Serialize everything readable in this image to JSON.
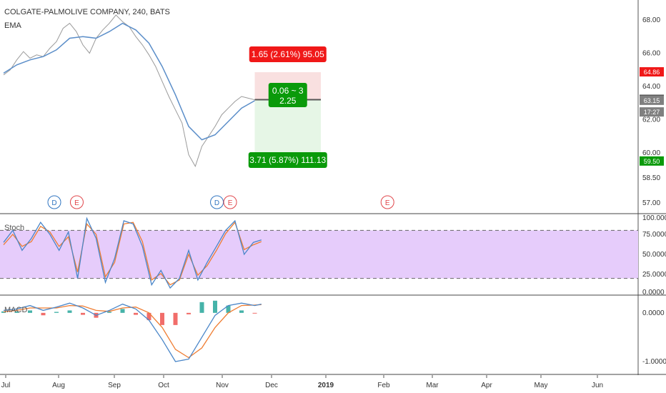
{
  "chart_data": {
    "type": "line",
    "title": "COLGATE-PALMOLIVE COMPANY, 240, BATS",
    "overlay_label": "EMA",
    "colors": {
      "price": "#9a9a9a",
      "ema": "#5b8ec9",
      "stoch_k": "#4a86c8",
      "stoch_d": "#ef7d32",
      "stoch_band": "#e6ccfb",
      "macd": "#4a86c8",
      "signal": "#ef7d32",
      "hist_up": "#26a69a",
      "hist_down": "#ef5350",
      "loss_zone": "#f9e0e0",
      "profit_zone": "#e6f6e6",
      "red_tag": "#f01818",
      "green_tag": "#0a9a0a",
      "gray_tag": "#808080",
      "dark_tag": "#555555",
      "dividend": "#2f74c0",
      "earnings": "#e0454a"
    },
    "x_axis_labels": [
      "Jul",
      "Aug",
      "Sep",
      "Oct",
      "Nov",
      "Dec",
      "2019",
      "Feb",
      "Mar",
      "Apr",
      "May",
      "Jun"
    ],
    "price_pane": {
      "ylim": [
        56.4,
        69.2
      ],
      "y_ticks": [
        "68.00",
        "66.00",
        "64.00",
        "62.00",
        "60.00",
        "58.50",
        "57.00"
      ],
      "y_tick_values": [
        68.0,
        66.0,
        64.0,
        62.0,
        60.0,
        58.5,
        57.0
      ],
      "price_tags": [
        {
          "label": "64.86",
          "value": 64.86,
          "style": "red"
        },
        {
          "label": "63.21",
          "value": 63.21,
          "style": "dark"
        },
        {
          "label": "63.15",
          "value": 63.15,
          "style": "gray"
        },
        {
          "label": "17:27",
          "value": 62.45,
          "style": "gray"
        },
        {
          "label": "59.50",
          "value": 59.5,
          "style": "green"
        }
      ],
      "price_series": [
        [
          0,
          64.7
        ],
        [
          0.5,
          65.0
        ],
        [
          1,
          65.6
        ],
        [
          1.5,
          66.1
        ],
        [
          2,
          65.7
        ],
        [
          2.5,
          65.9
        ],
        [
          3,
          65.8
        ],
        [
          3.5,
          66.3
        ],
        [
          4,
          66.7
        ],
        [
          4.5,
          67.5
        ],
        [
          5,
          67.8
        ],
        [
          5.5,
          67.3
        ],
        [
          6,
          66.5
        ],
        [
          6.5,
          66.0
        ],
        [
          7,
          66.9
        ],
        [
          7.5,
          67.4
        ],
        [
          8,
          67.8
        ],
        [
          8.5,
          68.3
        ],
        [
          9,
          67.9
        ],
        [
          9.5,
          67.6
        ],
        [
          10,
          67.0
        ],
        [
          10.5,
          66.5
        ],
        [
          11,
          65.9
        ],
        [
          11.5,
          65.2
        ],
        [
          12,
          64.3
        ],
        [
          12.5,
          63.4
        ],
        [
          13,
          62.6
        ],
        [
          13.5,
          61.8
        ],
        [
          14,
          59.9
        ],
        [
          14.5,
          59.2
        ],
        [
          15,
          60.4
        ],
        [
          15.5,
          61.0
        ],
        [
          16,
          61.6
        ],
        [
          16.5,
          62.3
        ],
        [
          17,
          62.7
        ],
        [
          17.5,
          63.1
        ],
        [
          18,
          63.4
        ],
        [
          18.5,
          63.3
        ],
        [
          19,
          63.2
        ]
      ],
      "ema_series": [
        [
          0,
          64.8
        ],
        [
          1,
          65.3
        ],
        [
          2,
          65.6
        ],
        [
          3,
          65.8
        ],
        [
          4,
          66.2
        ],
        [
          5,
          66.9
        ],
        [
          6,
          67.0
        ],
        [
          7,
          66.9
        ],
        [
          8,
          67.3
        ],
        [
          9,
          67.8
        ],
        [
          10,
          67.4
        ],
        [
          11,
          66.6
        ],
        [
          12,
          65.2
        ],
        [
          13,
          63.5
        ],
        [
          14,
          61.6
        ],
        [
          15,
          60.8
        ],
        [
          16,
          61.1
        ],
        [
          17,
          61.9
        ],
        [
          18,
          62.7
        ],
        [
          19,
          63.15
        ]
      ],
      "position": {
        "entry": 63.21,
        "stop": 64.86,
        "target": 59.5,
        "x_start": 19,
        "x_end": 24,
        "loss_label": "1.65 (2.61%) 95.05",
        "mid_label_1": "0.06 ~ 3",
        "mid_label_2": "2.25",
        "profit_label": "3.71 (5.87%) 111.13"
      },
      "events": [
        {
          "letter": "D",
          "x": 2,
          "type": "dividend"
        },
        {
          "letter": "E",
          "x": 3.7,
          "type": "earnings"
        },
        {
          "letter": "D",
          "x": 14.3,
          "type": "dividend"
        },
        {
          "letter": "E",
          "x": 15.3,
          "type": "earnings"
        },
        {
          "letter": "E",
          "x": 27.2,
          "type": "earnings"
        }
      ]
    },
    "stoch_pane": {
      "label": "Stoch",
      "ylim": [
        0,
        100
      ],
      "band": [
        20,
        80
      ],
      "y_ticks": [
        "100.0000",
        "75.0000",
        "50.0000",
        "25.0000",
        "0.0000"
      ],
      "y_tick_values": [
        100,
        75,
        50,
        25,
        0
      ],
      "k_series": [
        [
          0,
          65
        ],
        [
          0.7,
          80
        ],
        [
          1.4,
          55
        ],
        [
          2.1,
          70
        ],
        [
          2.8,
          90
        ],
        [
          3.5,
          75
        ],
        [
          4.2,
          55
        ],
        [
          4.9,
          78
        ],
        [
          5.6,
          20
        ],
        [
          6.3,
          95
        ],
        [
          7,
          70
        ],
        [
          7.7,
          15
        ],
        [
          8.4,
          45
        ],
        [
          9.1,
          92
        ],
        [
          9.8,
          88
        ],
        [
          10.5,
          60
        ],
        [
          11.2,
          12
        ],
        [
          11.9,
          30
        ],
        [
          12.6,
          8
        ],
        [
          13.3,
          20
        ],
        [
          14,
          55
        ],
        [
          14.7,
          18
        ],
        [
          15.4,
          40
        ],
        [
          16.1,
          60
        ],
        [
          16.8,
          80
        ],
        [
          17.5,
          92
        ],
        [
          18.2,
          50
        ],
        [
          18.9,
          65
        ],
        [
          19.5,
          68
        ]
      ],
      "d_series": [
        [
          0,
          62
        ],
        [
          0.7,
          75
        ],
        [
          1.4,
          60
        ],
        [
          2.1,
          66
        ],
        [
          2.8,
          85
        ],
        [
          3.5,
          78
        ],
        [
          4.2,
          60
        ],
        [
          4.9,
          72
        ],
        [
          5.6,
          28
        ],
        [
          6.3,
          88
        ],
        [
          7,
          75
        ],
        [
          7.7,
          22
        ],
        [
          8.4,
          40
        ],
        [
          9.1,
          88
        ],
        [
          9.8,
          90
        ],
        [
          10.5,
          66
        ],
        [
          11.2,
          18
        ],
        [
          11.9,
          26
        ],
        [
          12.6,
          12
        ],
        [
          13.3,
          18
        ],
        [
          14,
          50
        ],
        [
          14.7,
          24
        ],
        [
          15.4,
          36
        ],
        [
          16.1,
          55
        ],
        [
          16.8,
          76
        ],
        [
          17.5,
          90
        ],
        [
          18.2,
          56
        ],
        [
          18.9,
          62
        ],
        [
          19.5,
          66
        ]
      ]
    },
    "macd_pane": {
      "label": "MACD",
      "ylim": [
        -1.25,
        0.35
      ],
      "y_ticks": [
        "0.0000",
        "-1.0000"
      ],
      "y_tick_values": [
        0,
        -1
      ],
      "macd_series": [
        [
          0,
          0.05
        ],
        [
          1,
          0.08
        ],
        [
          2,
          0.15
        ],
        [
          3,
          0.05
        ],
        [
          4,
          0.12
        ],
        [
          5,
          0.2
        ],
        [
          6,
          0.1
        ],
        [
          7,
          -0.05
        ],
        [
          8,
          0.05
        ],
        [
          9,
          0.18
        ],
        [
          10,
          0.08
        ],
        [
          11,
          -0.15
        ],
        [
          12,
          -0.55
        ],
        [
          13,
          -1.0
        ],
        [
          14,
          -0.95
        ],
        [
          15,
          -0.5
        ],
        [
          16,
          -0.05
        ],
        [
          17,
          0.15
        ],
        [
          18,
          0.2
        ],
        [
          19,
          0.15
        ],
        [
          19.5,
          0.18
        ]
      ],
      "signal_series": [
        [
          0,
          0.02
        ],
        [
          1,
          0.05
        ],
        [
          2,
          0.1
        ],
        [
          3,
          0.1
        ],
        [
          4,
          0.1
        ],
        [
          5,
          0.15
        ],
        [
          6,
          0.14
        ],
        [
          7,
          0.05
        ],
        [
          8,
          0.03
        ],
        [
          9,
          0.1
        ],
        [
          10,
          0.12
        ],
        [
          11,
          0.0
        ],
        [
          12,
          -0.3
        ],
        [
          13,
          -0.75
        ],
        [
          14,
          -0.92
        ],
        [
          15,
          -0.72
        ],
        [
          16,
          -0.3
        ],
        [
          17,
          0.0
        ],
        [
          18,
          0.15
        ],
        [
          19,
          0.16
        ],
        [
          19.5,
          0.17
        ]
      ],
      "histogram": [
        0.03,
        0.03,
        0.05,
        -0.05,
        0.02,
        0.05,
        -0.04,
        -0.1,
        0.02,
        0.08,
        -0.04,
        -0.15,
        -0.25,
        -0.25,
        -0.03,
        0.22,
        0.25,
        0.15,
        0.05,
        -0.01
      ]
    }
  }
}
